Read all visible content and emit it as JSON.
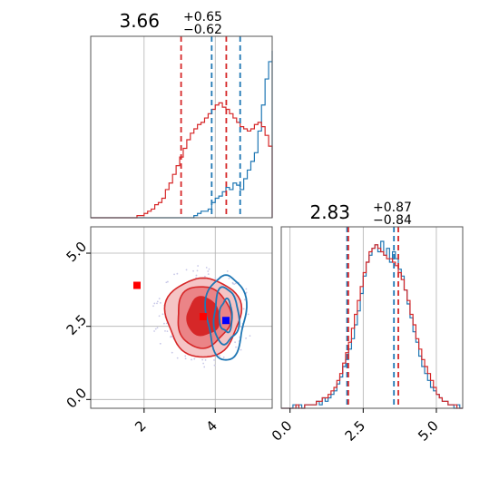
{
  "colors": {
    "blue": "#1f77b4",
    "red": "#d62728",
    "blue_marker": "#0000ff",
    "red_marker": "#ff0000",
    "grid": "#b0b0b0",
    "red_fill_outer": "#f5c4c5",
    "red_fill_mid": "#eb8487",
    "red_fill_inner": "#d62728"
  },
  "chart_data": [
    {
      "type": "histogram",
      "panel": "marginal-x",
      "title_value": "3.66",
      "title_plus": "+0.65",
      "title_minus": "−0.62",
      "xlim": [
        0.5,
        5.6
      ],
      "grid": true,
      "series": [
        {
          "color": "blue",
          "quantiles": [
            3.9,
            4.7
          ],
          "bin_edges_start": 0.5,
          "bin_width": 0.1,
          "values": [
            0,
            0,
            0,
            0,
            0,
            0,
            0,
            0,
            0,
            0,
            0,
            0,
            0,
            0,
            0,
            0,
            0,
            0,
            0,
            0,
            0,
            0,
            0,
            0,
            0,
            0,
            0,
            0,
            0,
            1,
            2,
            3,
            3,
            4,
            7,
            9,
            10,
            12,
            14,
            13,
            16,
            15,
            13,
            18,
            22,
            26,
            30,
            40,
            52,
            64,
            72,
            77,
            70,
            56,
            44,
            29,
            18,
            9,
            5,
            3,
            2,
            1,
            1,
            0,
            0,
            0,
            0,
            0,
            0,
            0,
            0,
            0,
            0,
            0,
            0,
            0,
            0,
            0,
            0,
            0
          ]
        },
        {
          "color": "red",
          "quantiles": [
            3.04,
            4.31
          ],
          "bin_edges_start": 0.5,
          "bin_width": 0.1,
          "values": [
            0,
            0,
            0,
            0,
            0,
            0,
            0,
            0,
            0,
            0,
            0,
            0,
            0,
            1,
            1,
            2,
            3,
            4,
            6,
            7,
            9,
            13,
            16,
            20,
            24,
            28,
            32,
            36,
            39,
            41,
            43,
            44,
            46,
            48,
            50,
            52,
            53,
            51,
            50,
            48,
            46,
            44,
            42,
            41,
            40,
            41,
            43,
            44,
            42,
            38,
            33,
            26,
            18,
            12,
            8,
            5,
            3,
            2,
            1,
            1,
            0,
            0,
            0,
            0,
            0,
            0,
            0,
            0,
            0,
            0,
            0,
            0,
            0,
            0,
            0,
            0,
            0,
            0,
            0,
            0,
            0
          ]
        }
      ]
    },
    {
      "type": "contour",
      "panel": "joint",
      "xlim": [
        0.5,
        5.6
      ],
      "ylim": [
        -0.3,
        5.9
      ],
      "xticks": [
        "2",
        "4"
      ],
      "xtick_values": [
        2,
        4
      ],
      "yticks": [
        "0.0",
        "2.5",
        "5.0"
      ],
      "ytick_values": [
        0,
        2.5,
        5
      ],
      "grid": true,
      "red_contours": {
        "center": [
          3.66,
          2.83
        ],
        "levels_sigma": [
          {
            "rx": 1.05,
            "ry": 1.35,
            "fill": "red_fill_outer"
          },
          {
            "rx": 0.75,
            "ry": 1.05,
            "fill": "red_fill_mid"
          },
          {
            "rx": 0.45,
            "ry": 0.65,
            "fill": "red_fill_inner"
          }
        ]
      },
      "blue_contours": {
        "center": [
          4.3,
          2.85
        ],
        "levels_sigma": [
          {
            "rx": 0.55,
            "ry": 1.45
          },
          {
            "rx": 0.35,
            "ry": 0.95
          },
          {
            "rx": 0.18,
            "ry": 0.55
          }
        ]
      },
      "markers": [
        {
          "color": "red_marker",
          "x": 1.8,
          "y": 3.9
        },
        {
          "color": "red_marker",
          "x": 3.66,
          "y": 2.83
        },
        {
          "color": "blue_marker",
          "x": 4.3,
          "y": 2.7
        }
      ]
    },
    {
      "type": "histogram",
      "panel": "marginal-y",
      "title_value": "2.83",
      "title_plus": "+0.87",
      "title_minus": "−0.84",
      "xlim": [
        -0.3,
        5.9
      ],
      "xticks": [
        "0.0",
        "2.5",
        "5.0"
      ],
      "xtick_values": [
        0,
        2.5,
        5
      ],
      "grid": true,
      "series": [
        {
          "color": "blue",
          "quantiles": [
            1.95,
            3.55
          ],
          "bin_edges_start": -0.3,
          "bin_width": 0.1,
          "values": [
            0,
            0,
            0,
            0,
            1,
            0,
            1,
            0,
            1,
            1,
            1,
            1,
            2,
            1,
            3,
            2,
            3,
            4,
            5,
            7,
            9,
            12,
            14,
            17,
            20,
            24,
            28,
            33,
            38,
            42,
            44,
            46,
            47,
            45,
            48,
            44,
            46,
            42,
            45,
            43,
            40,
            38,
            34,
            30,
            26,
            22,
            19,
            15,
            12,
            10,
            8,
            6,
            5,
            4,
            3,
            2,
            2,
            1,
            1,
            0,
            1,
            0
          ]
        },
        {
          "color": "red",
          "quantiles": [
            1.99,
            3.7
          ],
          "bin_edges_start": -0.3,
          "bin_width": 0.1,
          "values": [
            0,
            0,
            0,
            0,
            0,
            1,
            0,
            0,
            1,
            1,
            1,
            1,
            2,
            2,
            3,
            3,
            4,
            5,
            6,
            8,
            10,
            13,
            16,
            19,
            23,
            27,
            31,
            35,
            39,
            42,
            45,
            46,
            47,
            46,
            45,
            44,
            43,
            43,
            42,
            41,
            39,
            37,
            34,
            31,
            27,
            24,
            20,
            17,
            14,
            12,
            10,
            8,
            6,
            4,
            3,
            2,
            2,
            1,
            1,
            1,
            0,
            0
          ]
        }
      ]
    }
  ]
}
